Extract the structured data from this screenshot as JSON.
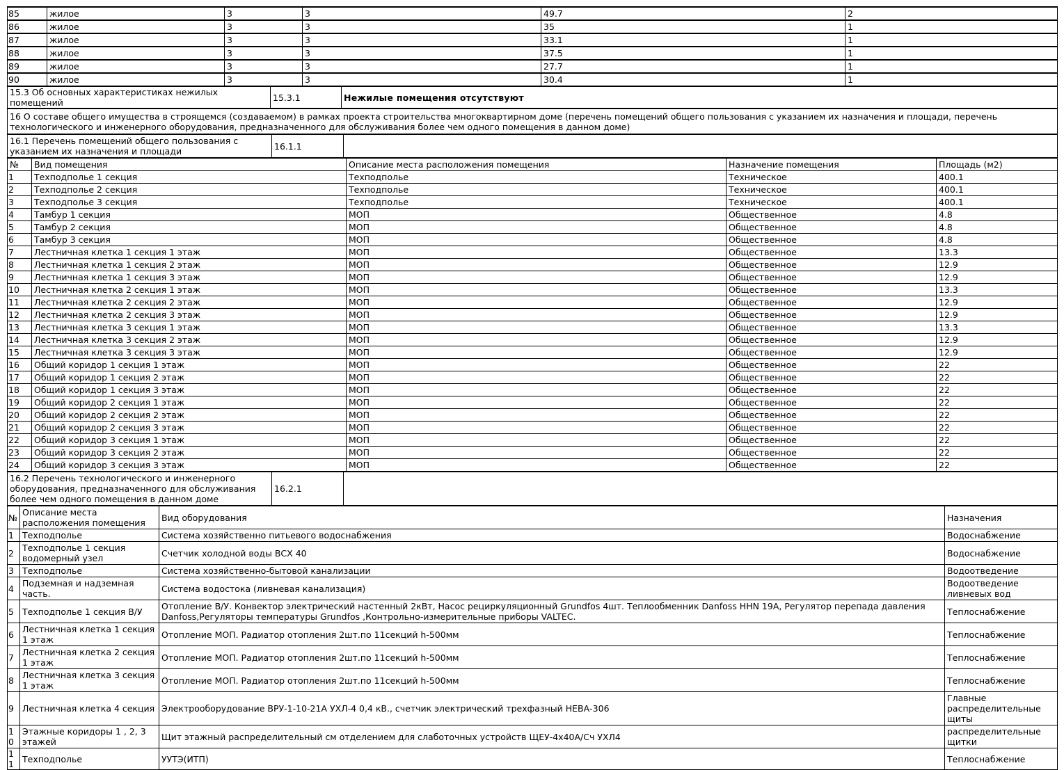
{
  "apartments": {
    "rows": [
      [
        "85",
        "жилое",
        "3",
        "3",
        "49.7",
        "2"
      ],
      [
        "86",
        "жилое",
        "3",
        "3",
        "35",
        "1"
      ],
      [
        "87",
        "жилое",
        "3",
        "3",
        "33.1",
        "1"
      ],
      [
        "88",
        "жилое",
        "3",
        "3",
        "37.5",
        "1"
      ],
      [
        "89",
        "жилое",
        "3",
        "3",
        "27.7",
        "1"
      ],
      [
        "90",
        "жилое",
        "3",
        "3",
        "30.4",
        "1"
      ]
    ]
  },
  "s15_3": {
    "label": "15.3 Об основных характеристиках нежилых помещений",
    "code": "15.3.1",
    "value": "Нежилые помещения отсутствуют"
  },
  "s16": {
    "text": "16 О составе общего имущества в строящемся (создаваемом) в рамках проекта строительства многоквартирном доме (перечень помещений общего пользования с указанием их назначения и площади, перечень технологического и инженерного оборудования, предназначенного для обслуживания более чем одного помещения в данном доме)"
  },
  "s16_1": {
    "label": "16.1 Перечень помещений общего пользования с указанием их назначения и площади",
    "code": "16.1.1"
  },
  "common_table": {
    "headers": [
      "№",
      "Вид помещения",
      "Описание места расположения помещения",
      "Назначение помещения",
      "Площадь (м2)"
    ],
    "rows": [
      [
        "1",
        "Техподполье 1 секция",
        "Техподполье",
        "Техническое",
        "400.1"
      ],
      [
        "2",
        "Техподполье 2 секция",
        "Техподполье",
        "Техническое",
        "400.1"
      ],
      [
        "3",
        "Техподполье 3 секция",
        "Техподполье",
        "Техническое",
        "400.1"
      ],
      [
        "4",
        "Тамбур 1 секция",
        "МОП",
        "Общественное",
        "4.8"
      ],
      [
        "5",
        "Тамбур 2 секция",
        "МОП",
        "Общественное",
        "4.8"
      ],
      [
        "6",
        "Тамбур 3 секция",
        "МОП",
        "Общественное",
        "4.8"
      ],
      [
        "7",
        "Лестничная клетка 1 секция 1 этаж",
        "МОП",
        "Общественное",
        "13.3"
      ],
      [
        "8",
        "Лестничная клетка 1 секция 2 этаж",
        "МОП",
        "Общественное",
        "12.9"
      ],
      [
        "9",
        "Лестничная клетка 1 секция 3 этаж",
        "МОП",
        "Общественное",
        "12.9"
      ],
      [
        "10",
        "Лестничная клетка 2 секция 1 этаж",
        "МОП",
        "Общественное",
        "13.3"
      ],
      [
        "11",
        "Лестничная клетка 2 секция 2 этаж",
        "МОП",
        "Общественное",
        "12.9"
      ],
      [
        "12",
        "Лестничная клетка 2 секция 3 этаж",
        "МОП",
        "Общественное",
        "12.9"
      ],
      [
        "13",
        "Лестничная клетка 3 секция 1 этаж",
        "МОП",
        "Общественное",
        "13.3"
      ],
      [
        "14",
        "Лестничная клетка 3 секция 2 этаж",
        "МОП",
        "Общественное",
        "12.9"
      ],
      [
        "15",
        "Лестничная клетка 3 секция 3 этаж",
        "МОП",
        "Общественное",
        "12.9"
      ],
      [
        "16",
        "Общий коридор 1 секция 1 этаж",
        "МОП",
        "Общественное",
        "22"
      ],
      [
        "17",
        "Общий коридор 1 секция 2 этаж",
        "МОП",
        "Общественное",
        "22"
      ],
      [
        "18",
        "Общий коридор 1 секция 3 этаж",
        "МОП",
        "Общественное",
        "22"
      ],
      [
        "19",
        "Общий коридор 2 секция 1 этаж",
        "МОП",
        "Общественное",
        "22"
      ],
      [
        "20",
        "Общий коридор 2 секция 2 этаж",
        "МОП",
        "Общественное",
        "22"
      ],
      [
        "21",
        "Общий коридор 2 секция 3 этаж",
        "МОП",
        "Общественное",
        "22"
      ],
      [
        "22",
        "Общий коридор 3 секция 1 этаж",
        "МОП",
        "Общественное",
        "22"
      ],
      [
        "23",
        "Общий коридор 3 секция 2 этаж",
        "МОП",
        "Общественное",
        "22"
      ],
      [
        "24",
        "Общий коридор 3 секция 3 этаж",
        "МОП",
        "Общественное",
        "22"
      ]
    ]
  },
  "s16_2": {
    "label": "16.2 Перечень технологического и инженерного оборудования, предназначенного для обслуживания более чем одного помещения в данном доме",
    "code": "16.2.1"
  },
  "equipment_table": {
    "headers": [
      "№",
      "Описание места расположения помещения",
      "Вид оборудования",
      "Назначения"
    ],
    "rows": [
      [
        "1",
        "Техподполье",
        "Система хозяйственно питьевого водоснабжения",
        "Водоснабжение"
      ],
      [
        "2",
        "Техподполье 1 секция водомерный узел",
        "Счетчик холодной воды ВСХ 40",
        "Водоснабжение"
      ],
      [
        "3",
        "Техподполье",
        "Система хозяйственно-бытовой канализации",
        "Водоотведение"
      ],
      [
        "4",
        "Подземная и надземная часть.",
        "Система водостока (ливневая канализация)",
        "Водоотведение ливневых вод"
      ],
      [
        "5",
        "Техподполье 1 секция В/У",
        "Отопление В/У. Конвектор электрический настенный 2кВт, Насос рециркуляционный Grundfos 4шт. Теплообменник Danfoss HHN 19A, Регулятор перепада давления Danfoss,Регуляторы температуры Grundfos ,Контрольно-измерительные приборы VALTEC.",
        "Теплоснабжение"
      ],
      [
        "6",
        "Лестничная клетка 1 секция 1 этаж",
        "Отопление МОП. Радиатор отопления 2шт.по 11секций h-500мм",
        "Теплоснабжение"
      ],
      [
        "7",
        "Лестничная клетка 2 секция 1 этаж",
        "Отопление МОП. Радиатор отопления 2шт.по 11секций h-500мм",
        "Теплоснабжение"
      ],
      [
        "8",
        "Лестничная клетка 3 секция 1 этаж",
        "Отопление МОП. Радиатор отопления 2шт.по 11секций h-500мм",
        "Теплоснабжение"
      ],
      [
        "9",
        "Лестничная клетка 4 секция",
        "Электрооборудование ВРУ-1-10-21А УХЛ-4 0,4 кВ., счетчик электрический трехфазный НЕВА-306",
        "Главные распределительные щиты"
      ],
      [
        "10",
        "Этажные коридоры 1 , 2, 3 этажей",
        "Щит этажный распределительный см отделением для слаботочных устройств ЩЕУ-4х40А/Сч УХЛ4",
        "распределительные щитки"
      ],
      [
        "11",
        "Техподполье",
        "УУТЭ(ИТП)",
        "Теплоснабжение"
      ]
    ]
  }
}
